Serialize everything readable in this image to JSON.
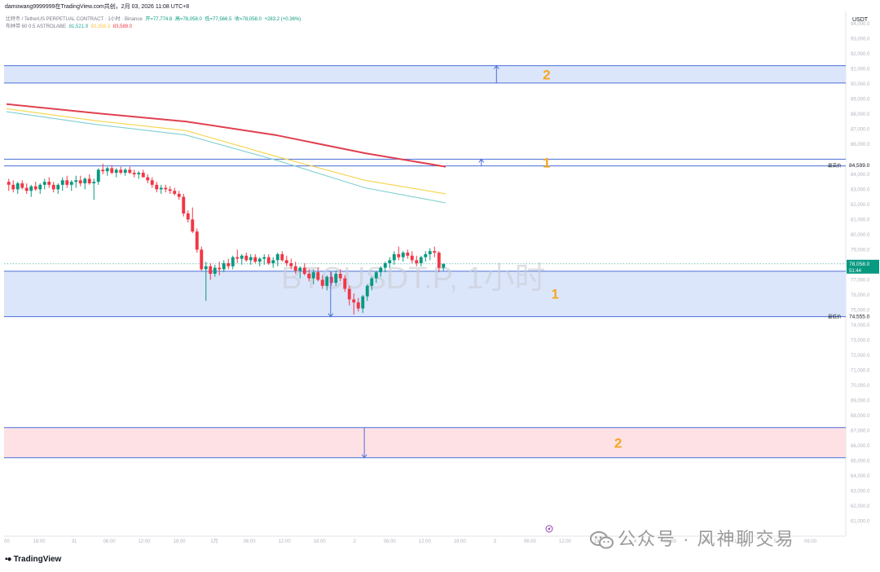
{
  "header": {
    "title": "damowang9999999在TradingView.com共创，2月 03, 2026 11:08 UTC+8"
  },
  "legend": {
    "symbol_line": "比特币 / TetherUS PERPETUAL CONTRACT · 1小时 · Binance",
    "open": "开=77,774.8",
    "high": "高=78,058.0",
    "low": "低=77,566.5",
    "close": "收=78,058.0",
    "change": "+283.2 (+0.36%)",
    "indicator_line": "布林带 60 0.5 ASTROLABE",
    "ind_vals": [
      "81,521.9",
      "82,356.3",
      "83,589.0"
    ],
    "ind_colors": [
      "#26a69a",
      "#f9c23c",
      "#f23645"
    ]
  },
  "chart_data": {
    "type": "candlestick",
    "symbol": "BTCUSDT.P, 1小时",
    "currency": "USDT",
    "ylim": [
      60000,
      94800
    ],
    "yticks": [
      61000,
      62000,
      63000,
      64000,
      65000,
      66000,
      67000,
      68000,
      69000,
      70000,
      71000,
      72000,
      73000,
      74000,
      75000,
      76000,
      77000,
      79000,
      80000,
      81000,
      82000,
      83000,
      84000,
      86000,
      87000,
      88000,
      89000,
      90000,
      91000,
      92000,
      93000,
      94000
    ],
    "xlabels": [
      "00",
      "18:00",
      "31",
      "06:00",
      "12:00",
      "18:00",
      "2月",
      "06:00",
      "12:00",
      "18:00",
      "2",
      "06:00",
      "12:00",
      "18:00",
      "3",
      "06:00",
      "12:00",
      "18:00",
      "4",
      "06:00",
      "12:00",
      "18:00",
      "5",
      "06:00",
      "12:00"
    ],
    "candles": [
      [
        83500,
        83700,
        82900,
        83300
      ],
      [
        83300,
        83600,
        82800,
        83000
      ],
      [
        83000,
        83500,
        82700,
        83400
      ],
      [
        83400,
        83600,
        83000,
        83100
      ],
      [
        83100,
        83400,
        82700,
        82900
      ],
      [
        82900,
        83300,
        82500,
        83200
      ],
      [
        83200,
        83500,
        82900,
        83000
      ],
      [
        83000,
        83400,
        82700,
        83300
      ],
      [
        83300,
        83700,
        83000,
        83500
      ],
      [
        83500,
        83800,
        83100,
        83300
      ],
      [
        83300,
        83500,
        82800,
        83000
      ],
      [
        83000,
        83400,
        82700,
        83300
      ],
      [
        83300,
        83800,
        82900,
        83600
      ],
      [
        83600,
        83900,
        83100,
        83300
      ],
      [
        83300,
        83600,
        82900,
        83500
      ],
      [
        83500,
        83900,
        83100,
        83600
      ],
      [
        83600,
        83900,
        83200,
        83400
      ],
      [
        83400,
        83800,
        83000,
        83700
      ],
      [
        83700,
        84000,
        83300,
        83400
      ],
      [
        83400,
        83700,
        82300,
        83500
      ],
      [
        83500,
        84400,
        83300,
        84300
      ],
      [
        84300,
        84700,
        84000,
        84200
      ],
      [
        84200,
        84500,
        83900,
        84400
      ],
      [
        84400,
        84600,
        84000,
        84100
      ],
      [
        84100,
        84400,
        83800,
        84300
      ],
      [
        84300,
        84500,
        84000,
        84100
      ],
      [
        84100,
        84400,
        83900,
        84300
      ],
      [
        84300,
        84500,
        84000,
        84100
      ],
      [
        84100,
        84300,
        83800,
        84000
      ],
      [
        84000,
        84200,
        83700,
        84100
      ],
      [
        84100,
        84300,
        83800,
        83800
      ],
      [
        83800,
        84000,
        83400,
        83600
      ],
      [
        83600,
        83800,
        83100,
        83300
      ],
      [
        83300,
        83500,
        82800,
        83000
      ],
      [
        83000,
        83300,
        82700,
        83100
      ],
      [
        83100,
        83300,
        82800,
        83000
      ],
      [
        83000,
        83200,
        82700,
        82900
      ],
      [
        82900,
        83100,
        82600,
        82700
      ],
      [
        82700,
        82900,
        82300,
        82500
      ],
      [
        82500,
        82700,
        81200,
        81400
      ],
      [
        81400,
        81600,
        80800,
        81000
      ],
      [
        81000,
        81800,
        80100,
        80200
      ],
      [
        80200,
        80400,
        78800,
        79000
      ],
      [
        79000,
        79200,
        77600,
        77700
      ],
      [
        77700,
        78200,
        75600,
        77900
      ],
      [
        77900,
        78100,
        77000,
        77400
      ],
      [
        77400,
        78000,
        77200,
        77800
      ],
      [
        77800,
        78200,
        77300,
        77700
      ],
      [
        77700,
        78300,
        77500,
        78100
      ],
      [
        78100,
        78400,
        77700,
        77900
      ],
      [
        77900,
        78600,
        77700,
        78500
      ],
      [
        78500,
        79000,
        78100,
        78400
      ],
      [
        78400,
        78700,
        78000,
        78600
      ],
      [
        78600,
        78800,
        78200,
        78300
      ],
      [
        78300,
        78700,
        78000,
        78500
      ],
      [
        78500,
        78700,
        78100,
        78200
      ],
      [
        78200,
        78500,
        77900,
        78400
      ],
      [
        78400,
        78700,
        78000,
        78500
      ],
      [
        78500,
        78700,
        78000,
        78100
      ],
      [
        78100,
        78500,
        77800,
        78300
      ],
      [
        78300,
        78800,
        77900,
        78700
      ],
      [
        78700,
        78900,
        78200,
        78300
      ],
      [
        78300,
        78600,
        77900,
        78100
      ],
      [
        78100,
        78400,
        77700,
        77900
      ],
      [
        77900,
        78200,
        77400,
        77600
      ],
      [
        77600,
        77900,
        77100,
        77800
      ],
      [
        77800,
        78100,
        77300,
        77400
      ],
      [
        77400,
        77700,
        76900,
        77100
      ],
      [
        77100,
        77700,
        76700,
        77500
      ],
      [
        77500,
        77800,
        76900,
        77000
      ],
      [
        77000,
        77300,
        76400,
        76600
      ],
      [
        76600,
        77300,
        76300,
        77200
      ],
      [
        77200,
        77500,
        76600,
        76800
      ],
      [
        76800,
        77600,
        76600,
        77400
      ],
      [
        77400,
        77700,
        76900,
        77100
      ],
      [
        77100,
        77300,
        76200,
        76400
      ],
      [
        76400,
        76600,
        75300,
        75700
      ],
      [
        75700,
        76100,
        74700,
        75500
      ],
      [
        75500,
        75800,
        74900,
        75100
      ],
      [
        75100,
        76000,
        74800,
        75900
      ],
      [
        75900,
        76700,
        75600,
        76600
      ],
      [
        76600,
        77200,
        76300,
        77100
      ],
      [
        77100,
        77600,
        76800,
        77500
      ],
      [
        77500,
        77900,
        77200,
        77800
      ],
      [
        77800,
        78200,
        77500,
        78100
      ],
      [
        78100,
        78500,
        77800,
        78300
      ],
      [
        78300,
        78900,
        78000,
        78700
      ],
      [
        78700,
        79200,
        78300,
        78500
      ],
      [
        78500,
        78900,
        78200,
        78800
      ],
      [
        78800,
        79000,
        78400,
        78600
      ],
      [
        78600,
        78900,
        78100,
        78300
      ],
      [
        78300,
        78600,
        77900,
        78100
      ],
      [
        78100,
        78600,
        77900,
        78500
      ],
      [
        78500,
        78900,
        78200,
        78700
      ],
      [
        78700,
        79100,
        78300,
        78900
      ],
      [
        78900,
        79200,
        78500,
        78800
      ],
      [
        78800,
        78900,
        77500,
        77800
      ],
      [
        77800,
        78100,
        77600,
        78058
      ]
    ],
    "ma_series": [
      {
        "color": "#e0404f",
        "points": [
          [
            0,
            88650
          ],
          [
            20,
            88050
          ],
          [
            40,
            87500
          ],
          [
            60,
            86600
          ],
          [
            80,
            85400
          ],
          [
            98,
            84500
          ]
        ]
      },
      {
        "color": "#f5d44b",
        "points": [
          [
            0,
            88350
          ],
          [
            20,
            87550
          ],
          [
            40,
            86900
          ],
          [
            60,
            85200
          ],
          [
            80,
            83600
          ],
          [
            98,
            82700
          ]
        ]
      },
      {
        "color": "#7fcfd2",
        "points": [
          [
            0,
            88150
          ],
          [
            20,
            87300
          ],
          [
            40,
            86600
          ],
          [
            60,
            84950
          ],
          [
            80,
            83100
          ],
          [
            98,
            82100
          ]
        ]
      }
    ],
    "zones": [
      {
        "top": 91200,
        "bottom": 90050,
        "fill": "#dce6fb",
        "stroke": "#4a6fd8",
        "label": "2",
        "label_x": 0.64,
        "arrow": "up",
        "arrow_x": 0.585
      },
      {
        "top": 85000,
        "bottom": 84550,
        "fill": "#ffffff",
        "stroke": "#4a6fd8",
        "label": "1",
        "label_x": 0.64,
        "arrow": "up",
        "arrow_x": 0.567
      },
      {
        "top": 77570,
        "bottom": 74555,
        "fill": "#dce6fb",
        "stroke": "#4a6fd8",
        "label": "1",
        "label_x": 0.65,
        "arrow": "down",
        "arrow_x": 0.388
      },
      {
        "top": 67200,
        "bottom": 65200,
        "fill": "#fde1e4",
        "stroke": "#4a6fd8",
        "label": "2",
        "label_x": 0.725,
        "arrow": "down",
        "arrow_x": 0.428
      }
    ],
    "price_labels": [
      {
        "price": 84599,
        "label": "最高价",
        "value": "84,599.0"
      },
      {
        "price": 74555,
        "label": "最低价",
        "value": "74,555.0"
      }
    ],
    "last_price": {
      "price": 78058,
      "value": "78,058.0",
      "countdown": "51:44",
      "color": "#089981"
    },
    "dotted_level": 78058,
    "label_color": "#f5a623"
  },
  "footer": {
    "brand": "TradingView"
  },
  "watermark": {
    "text": "公众号 · 风神聊交易"
  }
}
